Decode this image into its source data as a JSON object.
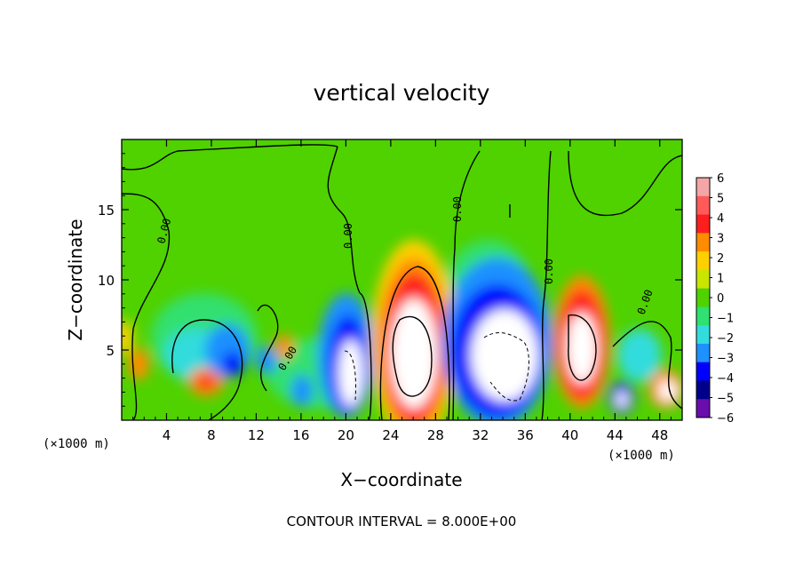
{
  "chart_data": {
    "type": "heatmap",
    "title": "vertical velocity",
    "xlabel": "X−coordinate",
    "ylabel": "Z−coordinate",
    "x_unit_left": "(×1000 m)",
    "x_unit_right": "(×1000 m)",
    "footer": "CONTOUR INTERVAL = 8.000E+00",
    "xlim": [
      0,
      50
    ],
    "ylim": [
      0,
      20
    ],
    "x_ticks": [
      4,
      8,
      12,
      16,
      20,
      24,
      28,
      32,
      36,
      40,
      44,
      48
    ],
    "y_ticks": [
      5,
      10,
      15
    ],
    "contour_label": "0.00",
    "colorbar": {
      "levels": [
        6,
        5,
        4,
        3,
        2,
        1,
        0,
        -1,
        -2,
        -3,
        -4,
        -5,
        -6
      ],
      "labels": [
        "6",
        "5",
        "4",
        "3",
        "2",
        "1",
        "0",
        "−1",
        "−2",
        "−3",
        "−4",
        "−5",
        "−6"
      ],
      "colors": [
        "#f4a6a6",
        "#ff5a5a",
        "#ff1e1e",
        "#ff8c00",
        "#ffd000",
        "#c8e600",
        "#4fd200",
        "#30e070",
        "#33dcdc",
        "#1e90ff",
        "#0000ff",
        "#00008b",
        "#6a0dad"
      ]
    },
    "features": [
      {
        "x": 4,
        "z": 4.0,
        "w": 1.0,
        "type": "positive",
        "peak": 3
      },
      {
        "x": 7.5,
        "z": 2.8,
        "w": 1.0,
        "type": "positive",
        "peak": 3
      },
      {
        "x": 10,
        "z": 4.0,
        "w": 1.5,
        "type": "negative",
        "peak": -4
      },
      {
        "x": 19.5,
        "z": 4.0,
        "w": 1.5,
        "type": "negative",
        "peak": -6
      },
      {
        "x": 26,
        "z": 5.5,
        "w": 3.0,
        "type": "positive",
        "peak": 6
      },
      {
        "x": 34,
        "z": 5.5,
        "w": 4.0,
        "type": "negative",
        "peak": -6
      },
      {
        "x": 41,
        "z": 5.5,
        "w": 2.0,
        "type": "positive",
        "peak": 6
      },
      {
        "x": 44.5,
        "z": 1.8,
        "w": 1.0,
        "type": "negative",
        "peak": -6
      },
      {
        "x": 48.5,
        "z": 2.2,
        "w": 1.0,
        "type": "positive",
        "peak": 6
      }
    ]
  }
}
